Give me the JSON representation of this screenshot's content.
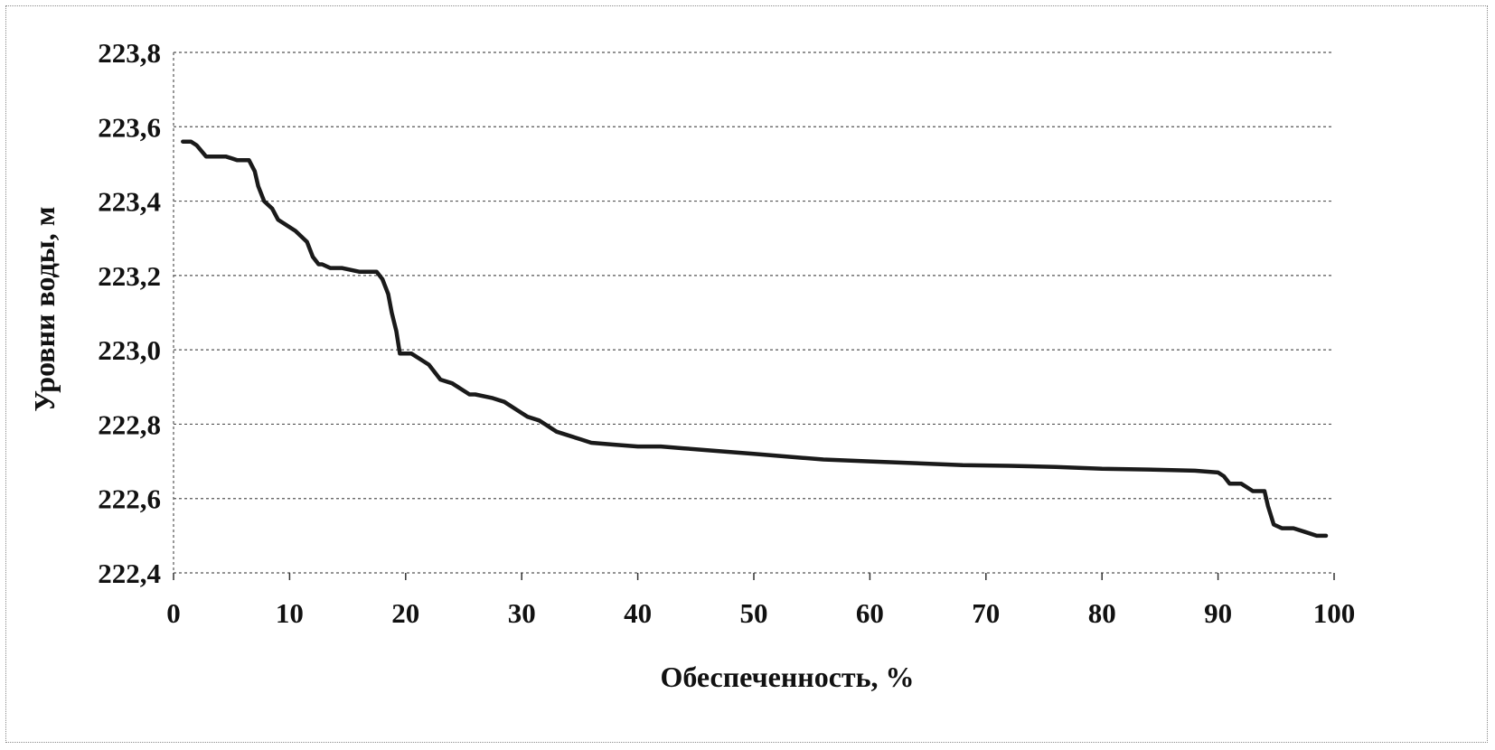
{
  "chart_data": {
    "type": "line",
    "title": "",
    "xlabel": "Обеспеченность, %",
    "ylabel": "Уровни воды, м",
    "xlim": [
      0,
      100
    ],
    "ylim": [
      222.4,
      223.8
    ],
    "x_ticks": [
      "0",
      "10",
      "20",
      "30",
      "40",
      "50",
      "60",
      "70",
      "80",
      "90",
      "100"
    ],
    "y_ticks": [
      "222,4",
      "222,6",
      "222,8",
      "223,0",
      "223,2",
      "223,4",
      "223,6",
      "223,8"
    ],
    "grid": true,
    "legend": "none",
    "line_color": "#1a1a1a",
    "series": [
      {
        "x": [
          0.8,
          1.5,
          2.0,
          2.8,
          3.5,
          4.5,
          5.5,
          6.5,
          7.0,
          7.3,
          7.8,
          8.5,
          9.0,
          9.5,
          10.5,
          11.5,
          12.0,
          12.5,
          12.8,
          13.5,
          14.5,
          16.0,
          17.5,
          18.0,
          18.5,
          18.8,
          19.2,
          19.5,
          20.5,
          21.0,
          22.0,
          23.0,
          24.0,
          25.0,
          25.5,
          26.0,
          27.5,
          28.5,
          29.5,
          30.0,
          30.5,
          31.5,
          32.0,
          33.0,
          34.0,
          35.0,
          36.0,
          38.0,
          40.0,
          42.0,
          44.0,
          46.0,
          48.0,
          50.0,
          52.0,
          54.0,
          56.0,
          60.0,
          64.0,
          68.0,
          72.0,
          76.0,
          80.0,
          84.0,
          88.0,
          90.0,
          90.5,
          91.0,
          92.0,
          92.5,
          93.0,
          94.0,
          94.3,
          94.8,
          95.5,
          96.5,
          97.5,
          98.5,
          99.3
        ],
        "y": [
          223.56,
          223.56,
          223.55,
          223.52,
          223.52,
          223.52,
          223.51,
          223.51,
          223.48,
          223.44,
          223.4,
          223.38,
          223.35,
          223.34,
          223.32,
          223.29,
          223.25,
          223.23,
          223.23,
          223.22,
          223.22,
          223.21,
          223.21,
          223.19,
          223.15,
          223.1,
          223.05,
          222.99,
          222.99,
          222.98,
          222.96,
          222.92,
          222.91,
          222.89,
          222.88,
          222.88,
          222.87,
          222.86,
          222.84,
          222.83,
          222.82,
          222.81,
          222.8,
          222.78,
          222.77,
          222.76,
          222.75,
          222.745,
          222.74,
          222.74,
          222.735,
          222.73,
          222.725,
          222.72,
          222.715,
          222.71,
          222.705,
          222.7,
          222.695,
          222.69,
          222.688,
          222.685,
          222.68,
          222.678,
          222.675,
          222.67,
          222.66,
          222.64,
          222.64,
          222.63,
          222.62,
          222.62,
          222.58,
          222.53,
          222.52,
          222.52,
          222.51,
          222.5,
          222.5
        ]
      }
    ]
  }
}
